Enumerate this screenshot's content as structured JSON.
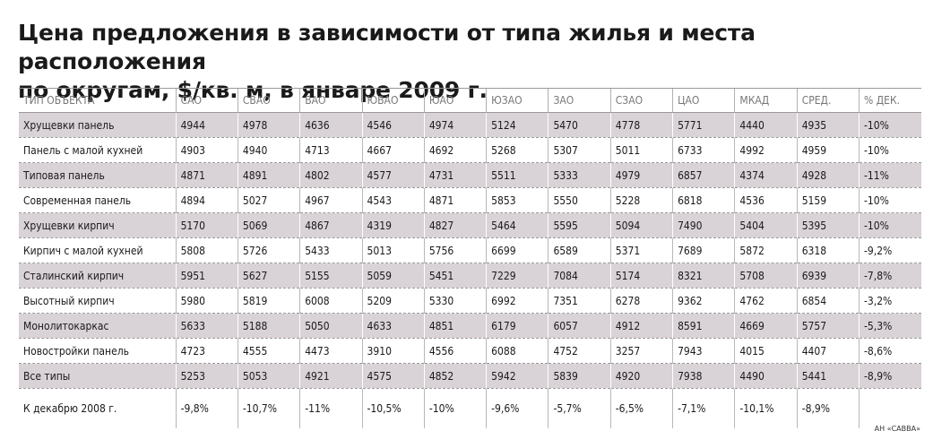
{
  "title": {
    "line1": "Цена предложения в зависимости от типа жилья и места расположения",
    "line2": "по округам, $/кв. м, в январе 2009 г."
  },
  "table": {
    "headers": [
      "ТИП ОБЪЕКТА",
      "САО",
      "СВАО",
      "ВАО",
      "ЮВАО",
      "ЮАО",
      "ЮЗАО",
      "ЗАО",
      "СЗАО",
      "ЦАО",
      "МКАД",
      "СРЕД.",
      "% ДЕК."
    ],
    "rows": [
      {
        "name": "Хрущевки панель",
        "values": [
          "4944",
          "4978",
          "4636",
          "4546",
          "4974",
          "5124",
          "5470",
          "4778",
          "5771",
          "4440",
          "4935",
          "-10%"
        ]
      },
      {
        "name": "Панель с малой кухней",
        "values": [
          "4903",
          "4940",
          "4713",
          "4667",
          "4692",
          "5268",
          "5307",
          "5011",
          "6733",
          "4992",
          "4959",
          "-10%"
        ]
      },
      {
        "name": "Типовая панель",
        "values": [
          "4871",
          "4891",
          "4802",
          "4577",
          "4731",
          "5511",
          "5333",
          "4979",
          "6857",
          "4374",
          "4928",
          "-11%"
        ]
      },
      {
        "name": "Современная панель",
        "values": [
          "4894",
          "5027",
          "4967",
          "4543",
          "4871",
          "5853",
          "5550",
          "5228",
          "6818",
          "4536",
          "5159",
          "-10%"
        ]
      },
      {
        "name": "Хрущевки кирпич",
        "values": [
          "5170",
          "5069",
          "4867",
          "4319",
          "4827",
          "5464",
          "5595",
          "5094",
          "7490",
          "5404",
          "5395",
          "-10%"
        ]
      },
      {
        "name": "Кирпич с малой кухней",
        "values": [
          "5808",
          "5726",
          "5433",
          "5013",
          "5756",
          "6699",
          "6589",
          "5371",
          "7689",
          "5872",
          "6318",
          "-9,2%"
        ]
      },
      {
        "name": "Сталинский кирпич",
        "values": [
          "5951",
          "5627",
          "5155",
          "5059",
          "5451",
          "7229",
          "7084",
          "5174",
          "8321",
          "5708",
          "6939",
          "-7,8%"
        ]
      },
      {
        "name": "Высотный кирпич",
        "values": [
          "5980",
          "5819",
          "6008",
          "5209",
          "5330",
          "6992",
          "7351",
          "6278",
          "9362",
          "4762",
          "6854",
          "-3,2%"
        ]
      },
      {
        "name": "Монолитокаркас",
        "values": [
          "5633",
          "5188",
          "5050",
          "4633",
          "4851",
          "6179",
          "6057",
          "4912",
          "8591",
          "4669",
          "5757",
          "-5,3%"
        ]
      },
      {
        "name": "Новостройки панель",
        "values": [
          "4723",
          "4555",
          "4473",
          "3910",
          "4556",
          "6088",
          "4752",
          "3257",
          "7943",
          "4015",
          "4407",
          "-8,6%"
        ]
      },
      {
        "name": "Все типы",
        "values": [
          "5253",
          "5053",
          "4921",
          "4575",
          "4852",
          "5942",
          "5839",
          "4920",
          "7938",
          "4490",
          "5441",
          "-8,9%"
        ]
      }
    ],
    "footer": {
      "name": "К декабрю 2008 г.",
      "values": [
        "-9,8%",
        "-10,7%",
        "-11%",
        "-10,5%",
        "-10%",
        "-9,6%",
        "-5,7%",
        "-6,5%",
        "-7,1%",
        "-10,1%",
        "-8,9%",
        ""
      ]
    }
  },
  "source": "АН «САВВА»",
  "colors": {
    "shaded_row": "#d9d2d7",
    "rule": "#9a9a9a"
  }
}
